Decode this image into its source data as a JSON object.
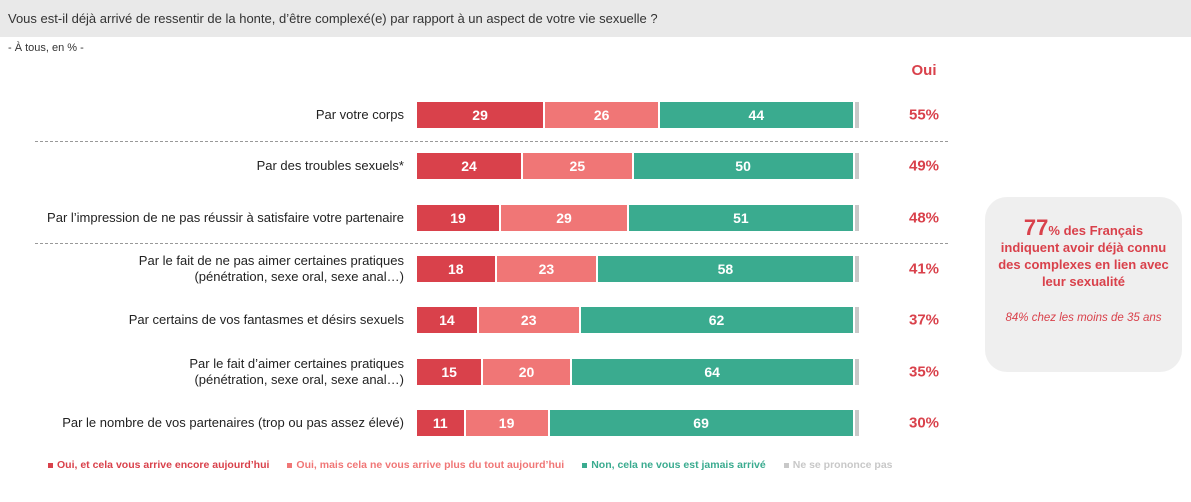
{
  "chart_data": {
    "type": "stacked-bar-horizontal",
    "title": "Vous est-il déjà arrivé de ressentir de la honte, d’être complexé(e) par rapport à un aspect de votre vie sexuelle ?",
    "subtitle": "- À tous, en % -",
    "categories": [
      "Par votre corps",
      "Par des troubles sexuels*",
      "Par l’impression de ne pas réussir à satisfaire votre partenaire",
      "Par le fait de ne pas aimer certaines pratiques\n(pénétration, sexe oral, sexe anal…)",
      "Par certains de vos fantasmes et désirs sexuels",
      "Par le fait d’aimer certaines pratiques\n(pénétration, sexe oral, sexe anal…)",
      "Par le nombre de vos partenaires (trop ou pas assez élevé)"
    ],
    "xlim": [
      0,
      100
    ],
    "series": [
      {
        "name": "Oui, et cela vous arrive encore aujourd’hui",
        "color": "#d9414b",
        "show_labels": true,
        "values": [
          29,
          24,
          19,
          18,
          14,
          15,
          11
        ]
      },
      {
        "name": "Oui, mais cela ne vous arrive plus du tout aujourd’hui",
        "color": "#f07676",
        "show_labels": true,
        "values": [
          26,
          25,
          29,
          23,
          23,
          20,
          19
        ]
      },
      {
        "name": "Non, cela ne vous est jamais arrivé",
        "color": "#3aab8f",
        "show_labels": true,
        "values": [
          44,
          50,
          51,
          58,
          62,
          64,
          69
        ]
      },
      {
        "name": "Ne se prononce pas",
        "color": "#c8c8c8",
        "show_labels": false,
        "values": [
          1,
          1,
          1,
          1,
          1,
          1,
          1
        ]
      }
    ],
    "totals": {
      "name": "Oui",
      "color": "#d9414b",
      "values": [
        55,
        49,
        48,
        41,
        37,
        35,
        30
      ],
      "value_labels": [
        "55%",
        "49%",
        "48%",
        "41%",
        "37%",
        "35%",
        "30%"
      ]
    },
    "callout": {
      "value": 77,
      "text": "% des Français indiquent avoir déjà connu des complexes en lien avec leur sexualité",
      "note": "84% chez les moins de 35 ans"
    }
  }
}
